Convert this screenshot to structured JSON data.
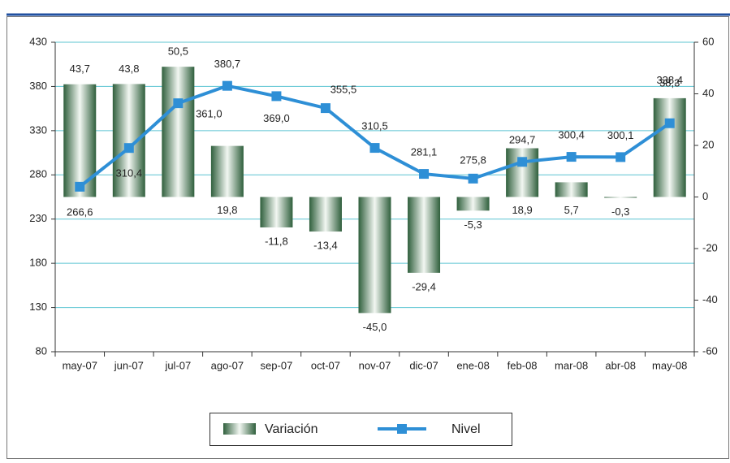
{
  "chart_data": {
    "type": "bar-line",
    "categories": [
      "may-07",
      "jun-07",
      "jul-07",
      "ago-07",
      "sep-07",
      "oct-07",
      "nov-07",
      "dic-07",
      "ene-08",
      "feb-08",
      "mar-08",
      "abr-08",
      "may-08"
    ],
    "series": [
      {
        "name": "Variación",
        "type": "bar",
        "axis": "y2",
        "color": "#2f5f3c",
        "values": [
          43.7,
          43.8,
          50.5,
          19.8,
          -11.8,
          -13.4,
          -45.0,
          -29.4,
          -5.3,
          18.9,
          5.7,
          -0.3,
          38.3
        ],
        "value_labels": [
          "43,7",
          "43,8",
          "50,5",
          "19,8",
          "-11,8",
          "-13,4",
          "-45,0",
          "-29,4",
          "-5,3",
          "18,9",
          "5,7",
          "-0,3",
          "38,3"
        ]
      },
      {
        "name": "Nivel",
        "type": "line",
        "color": "#2e8fd6",
        "values": [
          266.6,
          310.4,
          361.0,
          380.7,
          369.0,
          355.5,
          310.5,
          281.1,
          275.8,
          294.7,
          300.4,
          300.1,
          338.4
        ],
        "value_labels": [
          "266,6",
          "310,4",
          "361,0",
          "380,7",
          "369,0",
          "355,5",
          "310,5",
          "281,1",
          "275,8",
          "294,7",
          "300,4",
          "300,1",
          "338,4"
        ]
      }
    ],
    "ylim": [
      80,
      430
    ],
    "yticks": [
      80,
      130,
      180,
      230,
      280,
      330,
      380,
      430
    ],
    "y2lim": [
      -60,
      60
    ],
    "y2ticks": [
      -60,
      -40,
      -20,
      0,
      20,
      40,
      60
    ],
    "grid": true
  }
}
